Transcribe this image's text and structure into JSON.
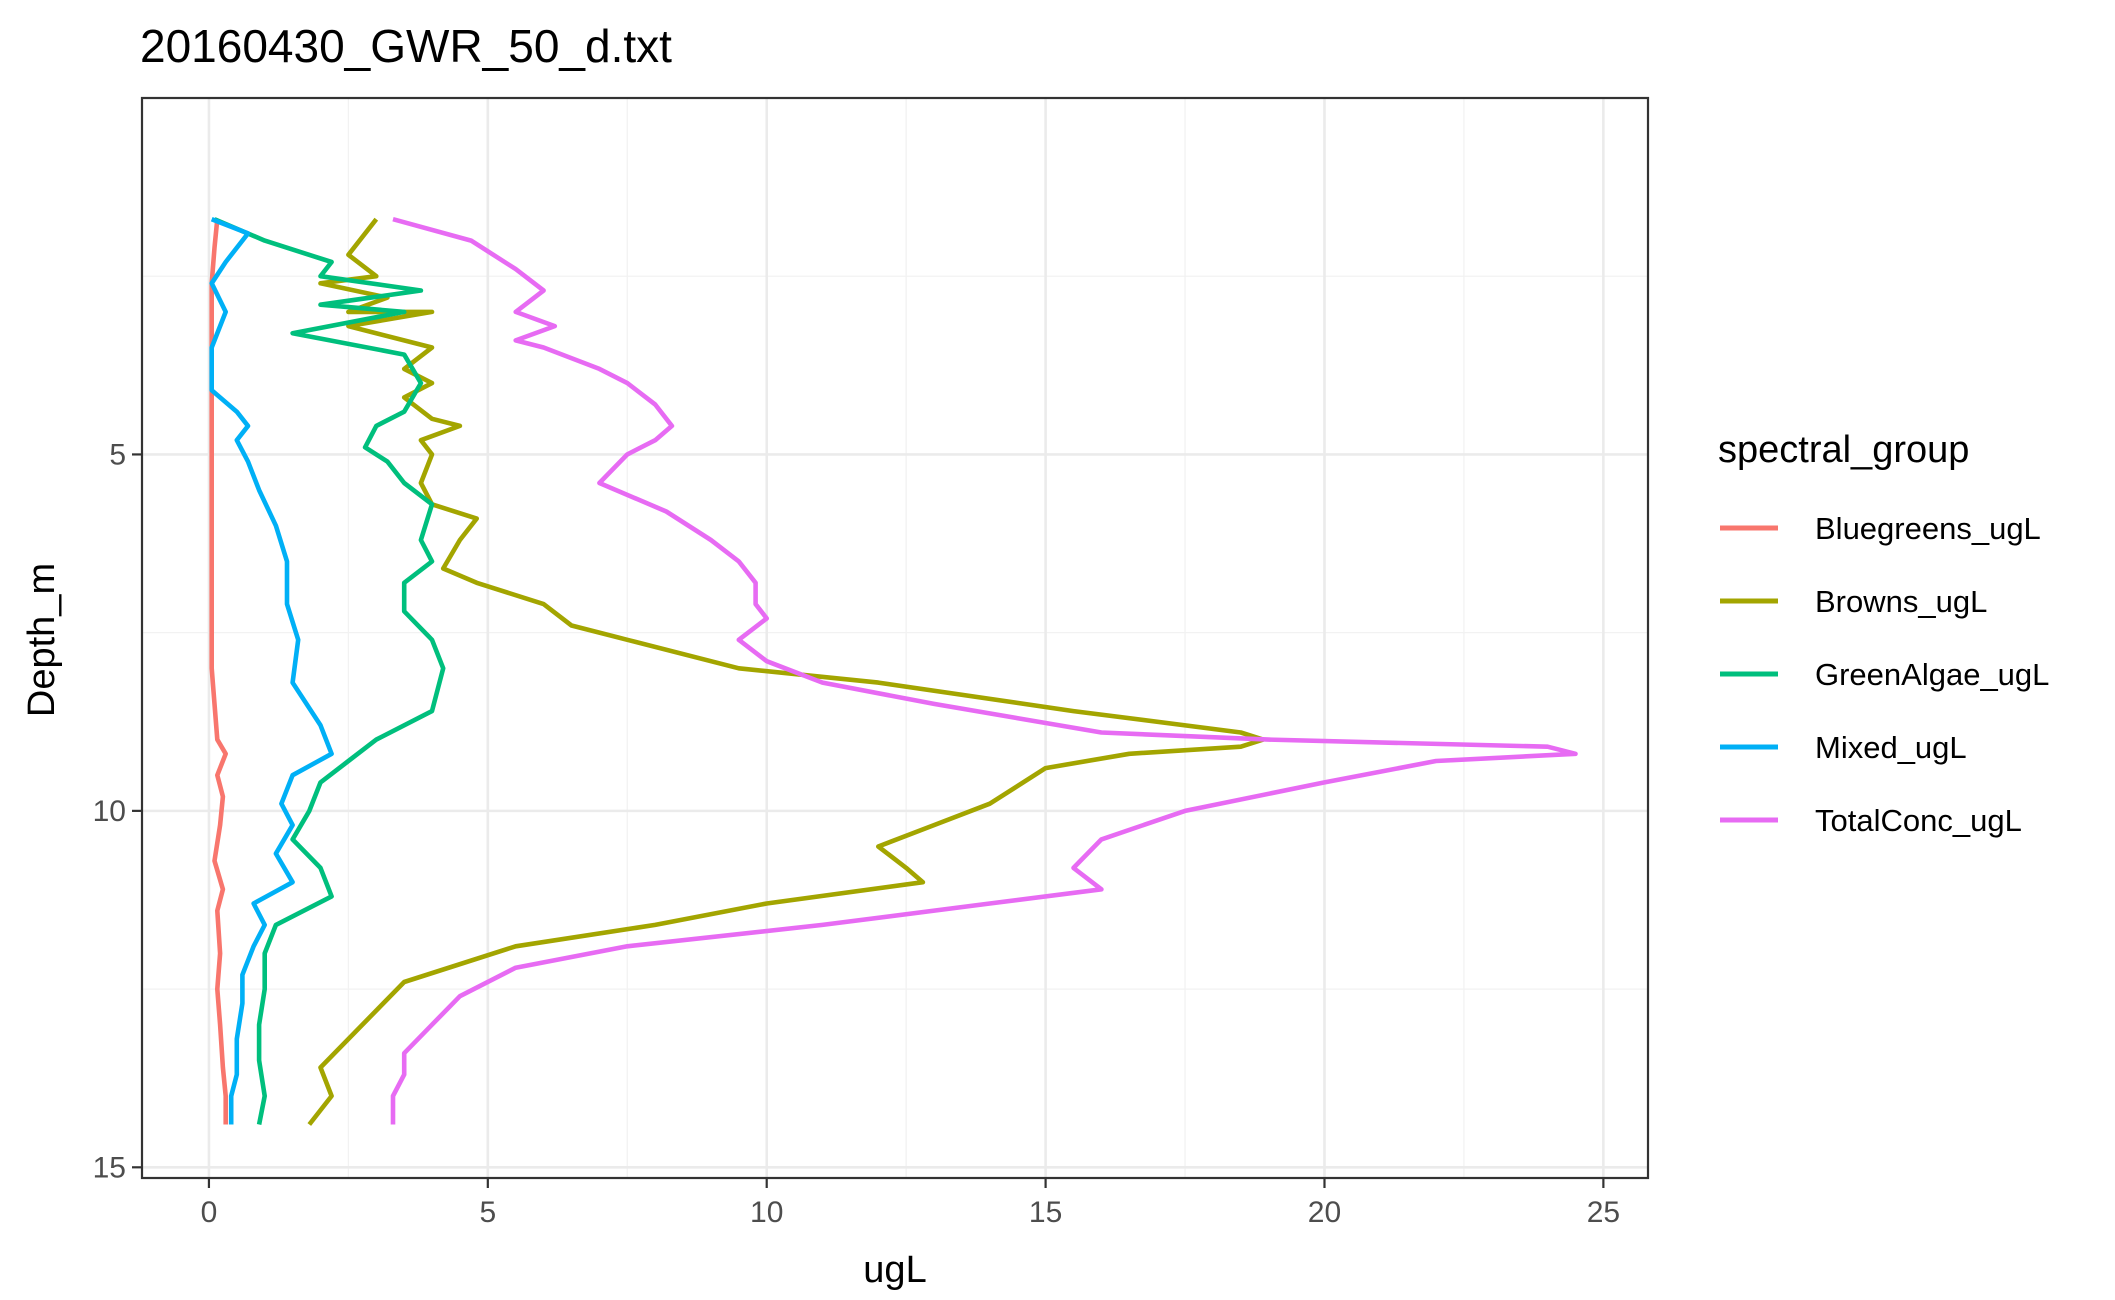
{
  "chart_data": {
    "type": "line",
    "title": "20160430_GWR_50_d.txt",
    "xlabel": "ugL",
    "ylabel": "Depth_m",
    "xlim": [
      -1.2,
      25.8
    ],
    "ylim": [
      0,
      15.15
    ],
    "y_reversed": true,
    "xticks": [
      0,
      5,
      10,
      15,
      20,
      25
    ],
    "yticks": [
      5,
      10,
      15
    ],
    "grid": true,
    "legend_title": "spectral_group",
    "legend_position": "right",
    "series": [
      {
        "name": "Bluegreens_ugL",
        "color": "#F8766D",
        "points": [
          [
            0.15,
            1.7
          ],
          [
            0.1,
            2.1
          ],
          [
            0.05,
            2.6
          ],
          [
            0.05,
            3.1
          ],
          [
            0.05,
            3.5
          ],
          [
            0.05,
            4.0
          ],
          [
            0.05,
            4.5
          ],
          [
            0.05,
            5.0
          ],
          [
            0.05,
            6.0
          ],
          [
            0.05,
            7.0
          ],
          [
            0.05,
            8.0
          ],
          [
            0.1,
            8.5
          ],
          [
            0.15,
            9.0
          ],
          [
            0.3,
            9.2
          ],
          [
            0.15,
            9.5
          ],
          [
            0.25,
            9.8
          ],
          [
            0.2,
            10.2
          ],
          [
            0.1,
            10.7
          ],
          [
            0.25,
            11.1
          ],
          [
            0.15,
            11.4
          ],
          [
            0.2,
            12.0
          ],
          [
            0.15,
            12.5
          ],
          [
            0.2,
            13.0
          ],
          [
            0.25,
            13.6
          ],
          [
            0.3,
            14.0
          ],
          [
            0.3,
            14.4
          ]
        ]
      },
      {
        "name": "Browns_ugL",
        "color": "#A3A500",
        "points": [
          [
            3.0,
            1.7
          ],
          [
            2.5,
            2.2
          ],
          [
            3.0,
            2.5
          ],
          [
            2.0,
            2.6
          ],
          [
            3.2,
            2.8
          ],
          [
            2.5,
            3.0
          ],
          [
            4.0,
            3.0
          ],
          [
            2.5,
            3.2
          ],
          [
            4.0,
            3.5
          ],
          [
            3.5,
            3.8
          ],
          [
            4.0,
            4.0
          ],
          [
            3.5,
            4.2
          ],
          [
            4.0,
            4.5
          ],
          [
            4.5,
            4.6
          ],
          [
            3.8,
            4.8
          ],
          [
            4.0,
            5.0
          ],
          [
            3.8,
            5.4
          ],
          [
            4.0,
            5.7
          ],
          [
            4.8,
            5.9
          ],
          [
            4.5,
            6.2
          ],
          [
            4.2,
            6.6
          ],
          [
            4.8,
            6.8
          ],
          [
            6.0,
            7.1
          ],
          [
            6.5,
            7.4
          ],
          [
            7.5,
            7.6
          ],
          [
            9.5,
            8.0
          ],
          [
            12.0,
            8.2
          ],
          [
            15.5,
            8.6
          ],
          [
            18.5,
            8.9
          ],
          [
            18.9,
            9.0
          ],
          [
            18.5,
            9.1
          ],
          [
            16.5,
            9.2
          ],
          [
            15.0,
            9.4
          ],
          [
            14.0,
            9.9
          ],
          [
            13.0,
            10.2
          ],
          [
            12.0,
            10.5
          ],
          [
            12.5,
            10.8
          ],
          [
            12.8,
            11.0
          ],
          [
            10.0,
            11.3
          ],
          [
            8.0,
            11.6
          ],
          [
            5.5,
            11.9
          ],
          [
            3.5,
            12.4
          ],
          [
            3.0,
            12.8
          ],
          [
            2.5,
            13.2
          ],
          [
            2.0,
            13.6
          ],
          [
            2.2,
            14.0
          ],
          [
            1.8,
            14.4
          ]
        ]
      },
      {
        "name": "GreenAlgae_ugL",
        "color": "#00BF7D",
        "points": [
          [
            0.1,
            1.7
          ],
          [
            1.0,
            2.0
          ],
          [
            2.2,
            2.3
          ],
          [
            2.0,
            2.5
          ],
          [
            3.8,
            2.7
          ],
          [
            2.0,
            2.9
          ],
          [
            3.5,
            3.0
          ],
          [
            1.5,
            3.3
          ],
          [
            3.5,
            3.6
          ],
          [
            3.8,
            4.0
          ],
          [
            3.5,
            4.4
          ],
          [
            3.0,
            4.6
          ],
          [
            2.8,
            4.9
          ],
          [
            3.2,
            5.1
          ],
          [
            3.5,
            5.4
          ],
          [
            4.0,
            5.7
          ],
          [
            3.8,
            6.2
          ],
          [
            4.0,
            6.5
          ],
          [
            3.5,
            6.8
          ],
          [
            3.5,
            7.2
          ],
          [
            4.0,
            7.6
          ],
          [
            4.2,
            8.0
          ],
          [
            4.0,
            8.6
          ],
          [
            3.0,
            9.0
          ],
          [
            2.5,
            9.3
          ],
          [
            2.0,
            9.6
          ],
          [
            1.8,
            10.0
          ],
          [
            1.5,
            10.4
          ],
          [
            2.0,
            10.8
          ],
          [
            2.2,
            11.2
          ],
          [
            1.2,
            11.6
          ],
          [
            1.0,
            12.0
          ],
          [
            1.0,
            12.5
          ],
          [
            0.9,
            13.0
          ],
          [
            0.9,
            13.5
          ],
          [
            1.0,
            14.0
          ],
          [
            0.9,
            14.4
          ]
        ]
      },
      {
        "name": "Mixed_ugL",
        "color": "#00B0F6",
        "points": [
          [
            0.05,
            1.7
          ],
          [
            0.7,
            1.9
          ],
          [
            0.3,
            2.3
          ],
          [
            0.05,
            2.6
          ],
          [
            0.3,
            3.0
          ],
          [
            0.05,
            3.5
          ],
          [
            0.05,
            4.1
          ],
          [
            0.5,
            4.4
          ],
          [
            0.7,
            4.6
          ],
          [
            0.5,
            4.8
          ],
          [
            0.7,
            5.1
          ],
          [
            0.9,
            5.5
          ],
          [
            1.2,
            6.0
          ],
          [
            1.4,
            6.5
          ],
          [
            1.4,
            7.1
          ],
          [
            1.6,
            7.6
          ],
          [
            1.5,
            8.2
          ],
          [
            2.0,
            8.8
          ],
          [
            2.2,
            9.2
          ],
          [
            1.5,
            9.5
          ],
          [
            1.3,
            9.9
          ],
          [
            1.5,
            10.2
          ],
          [
            1.2,
            10.6
          ],
          [
            1.5,
            11.0
          ],
          [
            0.8,
            11.3
          ],
          [
            1.0,
            11.6
          ],
          [
            0.8,
            11.9
          ],
          [
            0.6,
            12.3
          ],
          [
            0.6,
            12.7
          ],
          [
            0.5,
            13.2
          ],
          [
            0.5,
            13.7
          ],
          [
            0.4,
            14.0
          ],
          [
            0.4,
            14.4
          ]
        ]
      },
      {
        "name": "TotalConc_ugL",
        "color": "#E76BF3",
        "points": [
          [
            3.3,
            1.7
          ],
          [
            4.7,
            2.0
          ],
          [
            5.5,
            2.4
          ],
          [
            6.0,
            2.7
          ],
          [
            5.5,
            3.0
          ],
          [
            6.2,
            3.2
          ],
          [
            5.5,
            3.4
          ],
          [
            6.0,
            3.5
          ],
          [
            7.0,
            3.8
          ],
          [
            7.5,
            4.0
          ],
          [
            8.0,
            4.3
          ],
          [
            8.3,
            4.6
          ],
          [
            8.0,
            4.8
          ],
          [
            7.5,
            5.0
          ],
          [
            7.0,
            5.4
          ],
          [
            8.2,
            5.8
          ],
          [
            9.0,
            6.2
          ],
          [
            9.5,
            6.5
          ],
          [
            9.8,
            6.8
          ],
          [
            9.8,
            7.1
          ],
          [
            10.0,
            7.3
          ],
          [
            9.5,
            7.6
          ],
          [
            10.0,
            7.9
          ],
          [
            11.0,
            8.2
          ],
          [
            13.0,
            8.5
          ],
          [
            16.0,
            8.9
          ],
          [
            19.0,
            9.0
          ],
          [
            24.0,
            9.1
          ],
          [
            24.5,
            9.2
          ],
          [
            22.0,
            9.3
          ],
          [
            20.0,
            9.6
          ],
          [
            17.5,
            10.0
          ],
          [
            16.0,
            10.4
          ],
          [
            15.5,
            10.8
          ],
          [
            16.0,
            11.1
          ],
          [
            14.0,
            11.3
          ],
          [
            11.0,
            11.6
          ],
          [
            7.5,
            11.9
          ],
          [
            5.5,
            12.2
          ],
          [
            4.5,
            12.6
          ],
          [
            4.0,
            13.0
          ],
          [
            3.5,
            13.4
          ],
          [
            3.5,
            13.7
          ],
          [
            3.3,
            14.0
          ],
          [
            3.3,
            14.4
          ]
        ]
      }
    ]
  }
}
